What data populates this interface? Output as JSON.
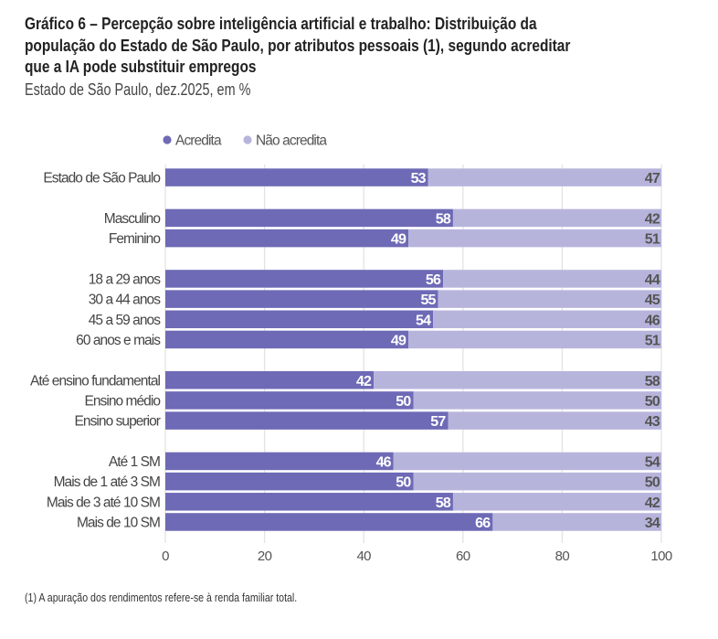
{
  "title_lines": [
    "Gráfico 6 – Percepção sobre inteligência artificial e trabalho: Distribuição da",
    "população do Estado de São Paulo, por atributos pessoais (1), segundo acreditar",
    "que a IA pode substituir empregos"
  ],
  "subtitle": "Estado de São Paulo, dez.2025, em %",
  "footnote": "(1) A apuração dos rendimentos refere-se à renda familiar total.",
  "chart_data": {
    "type": "bar",
    "orientation": "horizontal",
    "stacked": true,
    "title": "Gráfico 6 – Percepção sobre inteligência artificial e trabalho: Distribuição da população do Estado de São Paulo, por atributos pessoais (1), segundo acreditar que a IA pode substituir empregos",
    "subtitle": "Estado de São Paulo, dez.2025, em %",
    "groups": [
      [
        "Estado de São Paulo"
      ],
      [
        "Masculino",
        "Feminino"
      ],
      [
        "18 a 29 anos",
        "30 a 44 anos",
        "45 a 59 anos",
        "60 anos e mais"
      ],
      [
        "Até ensino fundamental",
        "Ensino médio",
        "Ensino superior"
      ],
      [
        "Até 1 SM",
        "Mais de 1 até 3 SM",
        "Mais de 3 até 10 SM",
        "Mais de 10 SM"
      ]
    ],
    "categories": [
      "Estado de São Paulo",
      "Masculino",
      "Feminino",
      "18 a 29 anos",
      "30 a 44 anos",
      "45 a 59 anos",
      "60 anos e mais",
      "Até ensino fundamental",
      "Ensino médio",
      "Ensino superior",
      "Até 1 SM",
      "Mais de 1 até 3 SM",
      "Mais de 3 até 10 SM",
      "Mais de 10 SM"
    ],
    "series": [
      {
        "name": "Acredita",
        "color": "#6e6ab6",
        "values": [
          53,
          58,
          49,
          56,
          55,
          54,
          49,
          42,
          50,
          57,
          46,
          50,
          58,
          66
        ]
      },
      {
        "name": "Não acredita",
        "color": "#b7b4dc",
        "values": [
          47,
          42,
          51,
          44,
          45,
          46,
          51,
          58,
          50,
          43,
          54,
          50,
          42,
          34
        ]
      }
    ],
    "xlim": [
      0,
      100
    ],
    "xticks": [
      0,
      20,
      40,
      60,
      80,
      100
    ],
    "grid": "vertical",
    "legend": "top"
  }
}
